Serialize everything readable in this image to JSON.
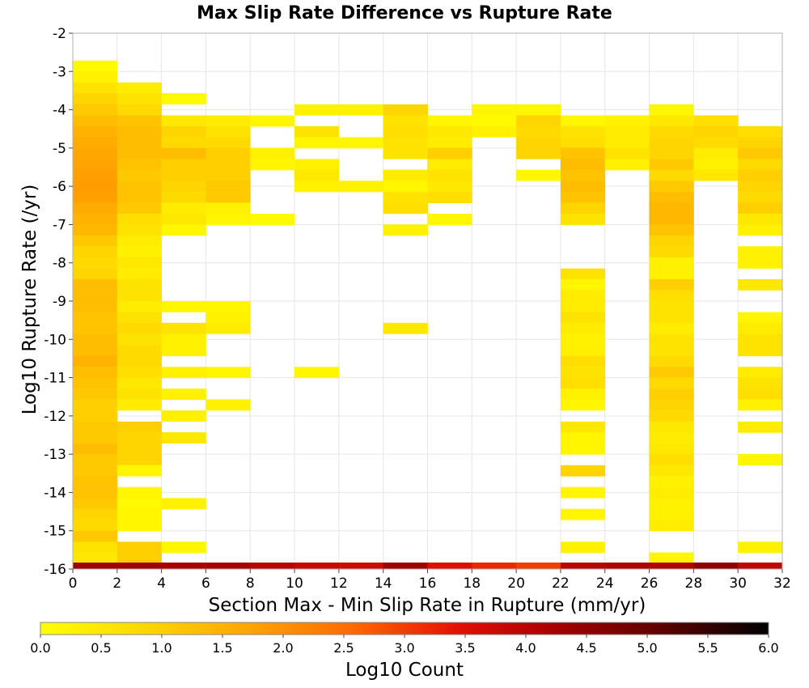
{
  "chart_data": {
    "type": "heatmap",
    "title": "Max Slip Rate Difference vs Rupture Rate",
    "xlabel": "Section Max - Min Slip Rate in Rupture (mm/yr)",
    "ylabel": "Log10 Rupture Rate (/yr)",
    "xlim": [
      0,
      32
    ],
    "ylim": [
      -16,
      -2
    ],
    "x_ticks": [
      "0",
      "2",
      "4",
      "6",
      "8",
      "10",
      "12",
      "14",
      "16",
      "18",
      "20",
      "22",
      "24",
      "26",
      "28",
      "30",
      "32"
    ],
    "y_ticks": [
      "-2",
      "-3",
      "-4",
      "-5",
      "-6",
      "-7",
      "-8",
      "-9",
      "-10",
      "-11",
      "-12",
      "-13",
      "-14",
      "-15",
      "-16"
    ],
    "x_bin_width": 2,
    "y_bin_height": 0.2857,
    "grid": true,
    "colorbar": {
      "label": "Log10 Count",
      "min": 0,
      "max": 6,
      "ticks": [
        "0.0",
        "0.5",
        "1.0",
        "1.5",
        "2.0",
        "2.5",
        "3.0",
        "3.5",
        "4.0",
        "4.5",
        "5.0",
        "5.5",
        "6.0"
      ],
      "colors": [
        "#ffff00",
        "#ffd700",
        "#ffa500",
        "#ff6a00",
        "#e51000",
        "#a00000",
        "#5a0000",
        "#000000"
      ]
    },
    "cells": [
      [
        1,
        -2.86,
        0.1
      ],
      [
        1,
        -3.14,
        0.3
      ],
      [
        1,
        -3.43,
        0.6
      ],
      [
        1,
        -3.71,
        0.9
      ],
      [
        1,
        -4.0,
        1.1
      ],
      [
        1,
        -4.29,
        1.3
      ],
      [
        1,
        -4.57,
        1.5
      ],
      [
        1,
        -4.86,
        1.6
      ],
      [
        1,
        -5.14,
        1.7
      ],
      [
        1,
        -5.43,
        1.75
      ],
      [
        1,
        -5.71,
        1.8
      ],
      [
        1,
        -6.0,
        1.85
      ],
      [
        1,
        -6.29,
        1.8
      ],
      [
        1,
        -6.57,
        1.6
      ],
      [
        1,
        -6.86,
        1.5
      ],
      [
        1,
        -7.14,
        1.4
      ],
      [
        1,
        -7.43,
        1.1
      ],
      [
        1,
        -7.71,
        0.9
      ],
      [
        1,
        -8.0,
        0.8
      ],
      [
        1,
        -8.29,
        0.9
      ],
      [
        1,
        -8.57,
        1.3
      ],
      [
        1,
        -8.86,
        1.3
      ],
      [
        1,
        -9.14,
        1.3
      ],
      [
        1,
        -9.43,
        1.2
      ],
      [
        1,
        -9.71,
        1.2
      ],
      [
        1,
        -10.0,
        1.3
      ],
      [
        1,
        -10.29,
        1.3
      ],
      [
        1,
        -10.57,
        1.5
      ],
      [
        1,
        -10.86,
        1.3
      ],
      [
        1,
        -11.14,
        1.2
      ],
      [
        1,
        -11.43,
        1.1
      ],
      [
        1,
        -11.71,
        1.0
      ],
      [
        1,
        -12.0,
        1.0
      ],
      [
        1,
        -12.29,
        1.1
      ],
      [
        1,
        -12.57,
        1.1
      ],
      [
        1,
        -12.86,
        1.3
      ],
      [
        1,
        -13.14,
        1.1
      ],
      [
        1,
        -13.43,
        1.1
      ],
      [
        1,
        -13.71,
        1.2
      ],
      [
        1,
        -14.0,
        1.2
      ],
      [
        1,
        -14.29,
        1.1
      ],
      [
        1,
        -14.57,
        0.9
      ],
      [
        1,
        -14.86,
        0.8
      ],
      [
        1,
        -15.14,
        1.1
      ],
      [
        1,
        -15.43,
        0.6
      ],
      [
        1,
        -15.71,
        0.5
      ],
      [
        3,
        -3.43,
        0.4
      ],
      [
        3,
        -3.71,
        0.6
      ],
      [
        3,
        -4.0,
        0.8
      ],
      [
        3,
        -4.29,
        1.2
      ],
      [
        3,
        -4.57,
        1.3
      ],
      [
        3,
        -4.86,
        1.3
      ],
      [
        3,
        -5.14,
        1.3
      ],
      [
        3,
        -5.43,
        1.2
      ],
      [
        3,
        -5.71,
        1.1
      ],
      [
        3,
        -6.0,
        1.2
      ],
      [
        3,
        -6.29,
        1.2
      ],
      [
        3,
        -6.57,
        1.1
      ],
      [
        3,
        -6.86,
        0.7
      ],
      [
        3,
        -7.14,
        0.6
      ],
      [
        3,
        -7.43,
        0.4
      ],
      [
        3,
        -7.71,
        0.3
      ],
      [
        3,
        -8.0,
        0.5
      ],
      [
        3,
        -8.29,
        0.4
      ],
      [
        3,
        -8.57,
        0.6
      ],
      [
        3,
        -8.86,
        0.6
      ],
      [
        3,
        -9.14,
        0.4
      ],
      [
        3,
        -9.43,
        0.6
      ],
      [
        3,
        -9.71,
        0.8
      ],
      [
        3,
        -10.0,
        0.6
      ],
      [
        3,
        -10.29,
        0.8
      ],
      [
        3,
        -10.57,
        0.8
      ],
      [
        3,
        -10.86,
        0.7
      ],
      [
        3,
        -11.14,
        0.5
      ],
      [
        3,
        -11.43,
        0.6
      ],
      [
        3,
        -11.71,
        0.4
      ],
      [
        3,
        -12.29,
        1.0
      ],
      [
        3,
        -12.57,
        0.9
      ],
      [
        3,
        -12.86,
        0.9
      ],
      [
        3,
        -13.14,
        0.9
      ],
      [
        3,
        -13.43,
        0.2
      ],
      [
        3,
        -14.0,
        0.2
      ],
      [
        3,
        -14.29,
        0.1
      ],
      [
        3,
        -14.57,
        0.2
      ],
      [
        3,
        -14.86,
        0.2
      ],
      [
        3,
        -15.43,
        1.0
      ],
      [
        3,
        -15.71,
        1.0
      ],
      [
        5,
        -3.71,
        0.1
      ],
      [
        5,
        -4.29,
        0.5
      ],
      [
        5,
        -4.57,
        0.9
      ],
      [
        5,
        -4.86,
        0.8
      ],
      [
        5,
        -5.14,
        1.3
      ],
      [
        5,
        -5.43,
        1.0
      ],
      [
        5,
        -5.71,
        1.0
      ],
      [
        5,
        -6.0,
        0.9
      ],
      [
        5,
        -6.29,
        0.8
      ],
      [
        5,
        -6.57,
        0.4
      ],
      [
        5,
        -6.86,
        0.5
      ],
      [
        5,
        -7.14,
        0.2
      ],
      [
        5,
        -9.14,
        0.2
      ],
      [
        5,
        -9.71,
        0.6
      ],
      [
        5,
        -10.0,
        0.3
      ],
      [
        5,
        -10.29,
        0.3
      ],
      [
        5,
        -10.86,
        0.3
      ],
      [
        5,
        -11.43,
        0.3
      ],
      [
        5,
        -12.0,
        0.3
      ],
      [
        5,
        -12.57,
        0.5
      ],
      [
        5,
        -14.29,
        0.3
      ],
      [
        5,
        -15.43,
        0.2
      ],
      [
        7,
        -4.29,
        0.4
      ],
      [
        7,
        -4.57,
        0.6
      ],
      [
        7,
        -4.86,
        0.8
      ],
      [
        7,
        -5.14,
        1.0
      ],
      [
        7,
        -5.43,
        1.0
      ],
      [
        7,
        -5.71,
        1.0
      ],
      [
        7,
        -6.0,
        1.1
      ],
      [
        7,
        -6.29,
        1.1
      ],
      [
        7,
        -6.57,
        0.3
      ],
      [
        7,
        -6.86,
        0.2
      ],
      [
        7,
        -9.14,
        0.2
      ],
      [
        7,
        -9.43,
        0.3
      ],
      [
        7,
        -9.71,
        0.4
      ],
      [
        7,
        -10.86,
        0.2
      ],
      [
        7,
        -11.71,
        0.3
      ],
      [
        9,
        -4.29,
        0.2
      ],
      [
        9,
        -5.14,
        0.3
      ],
      [
        9,
        -5.43,
        0.2
      ],
      [
        9,
        -6.86,
        0.1
      ],
      [
        11,
        -4.0,
        0.3
      ],
      [
        11,
        -4.57,
        0.6
      ],
      [
        11,
        -4.86,
        0.2
      ],
      [
        11,
        -5.43,
        0.3
      ],
      [
        11,
        -5.71,
        0.5
      ],
      [
        11,
        -6.0,
        0.3
      ],
      [
        11,
        -10.86,
        0.2
      ],
      [
        13,
        -4.0,
        0.3
      ],
      [
        13,
        -4.86,
        0.2
      ],
      [
        13,
        -6.0,
        0.3
      ],
      [
        15,
        -4.0,
        0.9
      ],
      [
        15,
        -4.29,
        0.6
      ],
      [
        15,
        -4.57,
        0.7
      ],
      [
        15,
        -4.86,
        0.6
      ],
      [
        15,
        -5.14,
        0.6
      ],
      [
        15,
        -5.71,
        0.4
      ],
      [
        15,
        -6.0,
        0.2
      ],
      [
        15,
        -6.29,
        0.6
      ],
      [
        15,
        -6.57,
        0.7
      ],
      [
        15,
        -7.14,
        0.3
      ],
      [
        15,
        -9.71,
        0.5
      ],
      [
        17,
        -4.29,
        0.2
      ],
      [
        17,
        -4.57,
        0.5
      ],
      [
        17,
        -4.86,
        0.4
      ],
      [
        17,
        -5.14,
        1.0
      ],
      [
        17,
        -5.43,
        0.4
      ],
      [
        17,
        -5.71,
        0.6
      ],
      [
        17,
        -6.0,
        0.5
      ],
      [
        17,
        -6.29,
        0.7
      ],
      [
        17,
        -6.86,
        0.2
      ],
      [
        19,
        -4.0,
        0.2
      ],
      [
        19,
        -4.29,
        0.1
      ],
      [
        19,
        -4.57,
        0.3
      ],
      [
        21,
        -4.0,
        0.2
      ],
      [
        21,
        -4.29,
        0.9
      ],
      [
        21,
        -4.57,
        0.8
      ],
      [
        21,
        -4.86,
        0.9
      ],
      [
        21,
        -5.14,
        0.9
      ],
      [
        21,
        -5.71,
        0.2
      ],
      [
        23,
        -4.29,
        0.2
      ],
      [
        23,
        -4.57,
        0.6
      ],
      [
        23,
        -4.86,
        0.7
      ],
      [
        23,
        -5.14,
        1.2
      ],
      [
        23,
        -5.43,
        1.3
      ],
      [
        23,
        -5.71,
        1.2
      ],
      [
        23,
        -6.0,
        1.3
      ],
      [
        23,
        -6.29,
        1.2
      ],
      [
        23,
        -6.57,
        0.9
      ],
      [
        23,
        -6.86,
        0.6
      ],
      [
        23,
        -8.29,
        0.6
      ],
      [
        23,
        -8.57,
        0.2
      ],
      [
        23,
        -8.86,
        0.4
      ],
      [
        23,
        -9.14,
        0.4
      ],
      [
        23,
        -9.43,
        0.6
      ],
      [
        23,
        -9.71,
        0.4
      ],
      [
        23,
        -10.0,
        0.3
      ],
      [
        23,
        -10.29,
        0.3
      ],
      [
        23,
        -10.57,
        0.7
      ],
      [
        23,
        -10.86,
        0.6
      ],
      [
        23,
        -11.14,
        0.7
      ],
      [
        23,
        -11.43,
        0.3
      ],
      [
        23,
        -11.71,
        0.2
      ],
      [
        23,
        -12.29,
        0.5
      ],
      [
        23,
        -12.57,
        0.2
      ],
      [
        23,
        -12.86,
        0.2
      ],
      [
        23,
        -13.43,
        0.9
      ],
      [
        23,
        -14.0,
        0.2
      ],
      [
        23,
        -14.57,
        0.2
      ],
      [
        23,
        -15.43,
        0.3
      ],
      [
        25,
        -4.29,
        0.3
      ],
      [
        25,
        -4.57,
        0.4
      ],
      [
        25,
        -4.86,
        0.4
      ],
      [
        25,
        -5.14,
        0.6
      ],
      [
        25,
        -5.43,
        0.3
      ],
      [
        27,
        -4.0,
        0.2
      ],
      [
        27,
        -4.29,
        0.5
      ],
      [
        27,
        -4.57,
        0.8
      ],
      [
        27,
        -4.86,
        0.9
      ],
      [
        27,
        -5.14,
        0.9
      ],
      [
        27,
        -5.43,
        1.1
      ],
      [
        27,
        -5.71,
        0.8
      ],
      [
        27,
        -6.0,
        1.1
      ],
      [
        27,
        -6.29,
        1.3
      ],
      [
        27,
        -6.57,
        1.4
      ],
      [
        27,
        -6.86,
        1.4
      ],
      [
        27,
        -7.14,
        1.2
      ],
      [
        27,
        -7.43,
        0.9
      ],
      [
        27,
        -7.71,
        0.8
      ],
      [
        27,
        -8.0,
        0.3
      ],
      [
        27,
        -8.29,
        0.3
      ],
      [
        27,
        -8.57,
        1.0
      ],
      [
        27,
        -8.86,
        0.7
      ],
      [
        27,
        -9.14,
        0.6
      ],
      [
        27,
        -9.43,
        0.6
      ],
      [
        27,
        -9.71,
        0.4
      ],
      [
        27,
        -10.0,
        0.6
      ],
      [
        27,
        -10.29,
        0.6
      ],
      [
        27,
        -10.57,
        0.8
      ],
      [
        27,
        -10.86,
        1.1
      ],
      [
        27,
        -11.14,
        0.8
      ],
      [
        27,
        -11.43,
        1.0
      ],
      [
        27,
        -11.71,
        0.9
      ],
      [
        27,
        -12.0,
        0.8
      ],
      [
        27,
        -12.29,
        0.5
      ],
      [
        27,
        -12.57,
        0.4
      ],
      [
        27,
        -12.86,
        0.5
      ],
      [
        27,
        -13.14,
        0.7
      ],
      [
        27,
        -13.43,
        0.5
      ],
      [
        27,
        -13.71,
        0.3
      ],
      [
        27,
        -14.0,
        0.4
      ],
      [
        27,
        -14.29,
        0.3
      ],
      [
        27,
        -14.57,
        0.3
      ],
      [
        27,
        -14.86,
        0.4
      ],
      [
        27,
        -15.71,
        0.2
      ],
      [
        29,
        -4.29,
        0.7
      ],
      [
        29,
        -4.57,
        0.9
      ],
      [
        29,
        -4.86,
        0.8
      ],
      [
        29,
        -5.14,
        0.4
      ],
      [
        29,
        -5.43,
        0.3
      ],
      [
        29,
        -5.71,
        0.5
      ],
      [
        31,
        -4.57,
        0.7
      ],
      [
        31,
        -4.86,
        0.9
      ],
      [
        31,
        -5.14,
        1.1
      ],
      [
        31,
        -5.43,
        0.8
      ],
      [
        31,
        -5.71,
        1.0
      ],
      [
        31,
        -6.0,
        0.9
      ],
      [
        31,
        -6.29,
        0.8
      ],
      [
        31,
        -6.57,
        1.0
      ],
      [
        31,
        -6.86,
        0.5
      ],
      [
        31,
        -7.14,
        0.3
      ],
      [
        31,
        -7.71,
        0.3
      ],
      [
        31,
        -8.0,
        0.3
      ],
      [
        31,
        -8.57,
        0.5
      ],
      [
        31,
        -9.43,
        0.2
      ],
      [
        31,
        -9.71,
        0.4
      ],
      [
        31,
        -10.0,
        0.6
      ],
      [
        31,
        -10.29,
        0.6
      ],
      [
        31,
        -10.86,
        0.4
      ],
      [
        31,
        -11.14,
        0.6
      ],
      [
        31,
        -11.43,
        0.7
      ],
      [
        31,
        -11.71,
        0.3
      ],
      [
        31,
        -12.29,
        0.4
      ],
      [
        31,
        -13.14,
        0.2
      ],
      [
        31,
        -15.43,
        0.3
      ]
    ],
    "bottom_row": [
      4.3,
      4.3,
      4.2,
      4.2,
      4.0,
      3.8,
      3.7,
      4.3,
      3.5,
      3.2,
      3.0,
      4.0,
      4.1,
      4.1,
      4.5,
      3.9
    ]
  }
}
